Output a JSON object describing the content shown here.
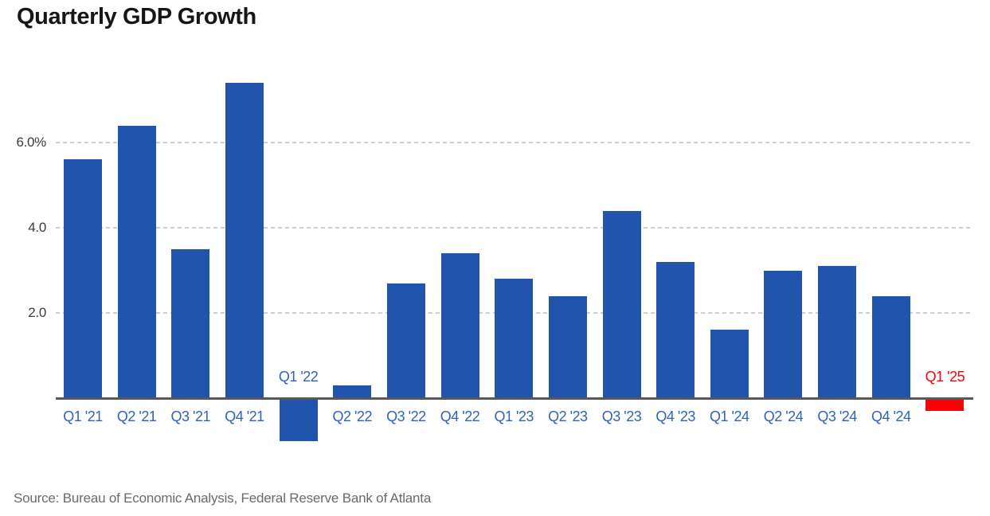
{
  "title": "Quarterly GDP Growth",
  "source": "Source: Bureau of Economic Analysis, Federal Reserve Bank of Atlanta",
  "colors": {
    "bar_blue": "#2155ad",
    "bar_red": "#fb0007",
    "label_blue": "#3064b6",
    "label_red": "#f80207",
    "grid": "#cfcfcf",
    "axis": "#58585a",
    "title_text": "#161616",
    "tick_text": "#3b3b3b",
    "source_text": "#6a6a6a",
    "background": "#ffffff"
  },
  "chart_data": {
    "type": "bar",
    "title": "Quarterly GDP Growth",
    "unit": "%",
    "xlabel": "",
    "ylabel": "",
    "legend": "none",
    "grid": "horizontal-dashed",
    "ylim": [
      -1.2,
      7.9
    ],
    "categories": [
      "Q1 '21",
      "Q2 '21",
      "Q3 '21",
      "Q4 '21",
      "Q1 '22",
      "Q2 '22",
      "Q3 '22",
      "Q4 '22",
      "Q1 '23",
      "Q2 '23",
      "Q3 '23",
      "Q4 '23",
      "Q1 '24",
      "Q2 '24",
      "Q3 '24",
      "Q4 '24",
      "Q1 '25"
    ],
    "values": [
      5.6,
      6.4,
      3.5,
      7.4,
      -1.0,
      0.3,
      2.7,
      3.4,
      2.8,
      2.4,
      4.4,
      3.2,
      1.6,
      3.0,
      3.1,
      2.4,
      -0.3
    ],
    "bar_colors": [
      "#2155ad",
      "#2155ad",
      "#2155ad",
      "#2155ad",
      "#2155ad",
      "#2155ad",
      "#2155ad",
      "#2155ad",
      "#2155ad",
      "#2155ad",
      "#2155ad",
      "#2155ad",
      "#2155ad",
      "#2155ad",
      "#2155ad",
      "#2155ad",
      "#fb0007"
    ],
    "label_colors": [
      "#3064b6",
      "#3064b6",
      "#3064b6",
      "#3064b6",
      "#3064b6",
      "#3064b6",
      "#3064b6",
      "#3064b6",
      "#3064b6",
      "#3064b6",
      "#3064b6",
      "#3064b6",
      "#3064b6",
      "#3064b6",
      "#3064b6",
      "#3064b6",
      "#f80207"
    ],
    "y_ticks": [
      {
        "value": 6.0,
        "label": "6.0%"
      },
      {
        "value": 4.0,
        "label": "4.0"
      },
      {
        "value": 2.0,
        "label": "2.0"
      }
    ]
  }
}
